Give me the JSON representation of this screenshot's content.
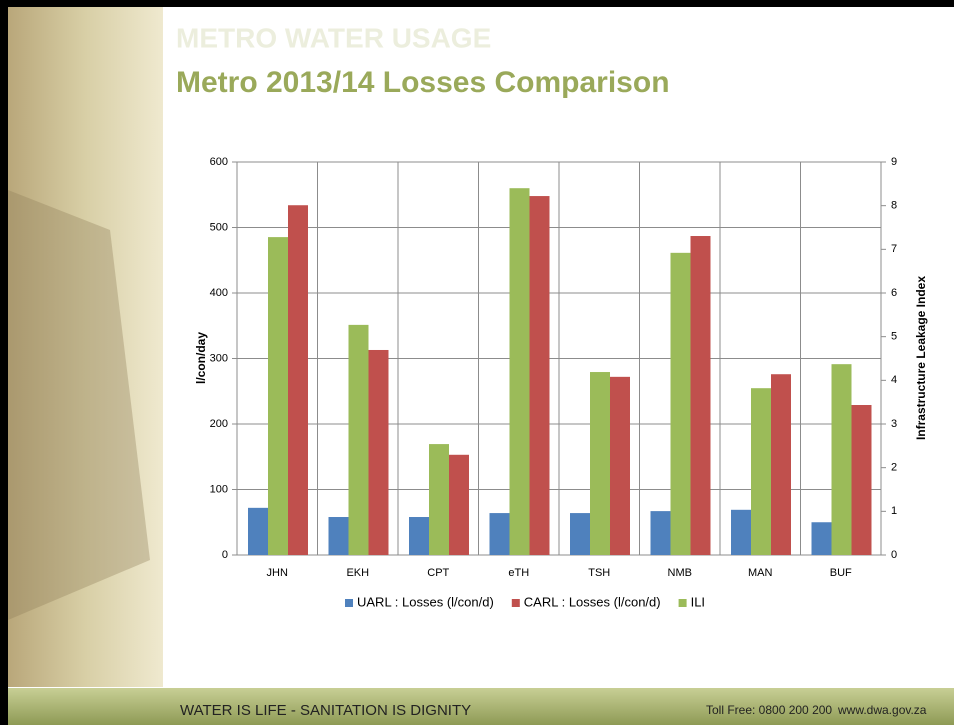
{
  "slide": {
    "heading": "METRO WATER USAGE",
    "title": "Metro 2013/14 Losses Comparison",
    "footer_motto": "WATER IS LIFE - SANITATION IS DIGNITY",
    "toll_free": "Toll Free: 0800 200 200",
    "website": "www.dwa.gov.za"
  },
  "chart_data": {
    "type": "bar",
    "y_label": "l/con/day",
    "y2_label": "Infrastructure Leakage Index",
    "categories": [
      "JHN",
      "EKH",
      "CPT",
      "eTH",
      "TSH",
      "NMB",
      "MAN",
      "BUF"
    ],
    "series": [
      {
        "name": "UARL : Losses (l/con/d)",
        "color": "#4f81bd",
        "values": [
          72,
          58,
          58,
          64,
          64,
          67,
          69,
          50
        ]
      },
      {
        "name": "CARL : Losses (l/con/d)",
        "color": "#c0504d",
        "values": [
          534,
          313,
          153,
          548,
          272,
          487,
          276,
          229
        ]
      },
      {
        "name": "ILI",
        "color": "#9bbb59",
        "axis": "y2",
        "values": [
          7.28,
          5.27,
          2.54,
          8.4,
          4.19,
          6.92,
          3.82,
          4.37
        ]
      }
    ],
    "ylim": [
      0,
      600
    ],
    "yticks": [
      0,
      100,
      200,
      300,
      400,
      500,
      600
    ],
    "y2lim": [
      0,
      9
    ],
    "y2ticks": [
      0,
      1,
      2,
      3,
      4,
      5,
      6,
      7,
      8,
      9
    ],
    "grid": true,
    "legend": "bottom"
  }
}
